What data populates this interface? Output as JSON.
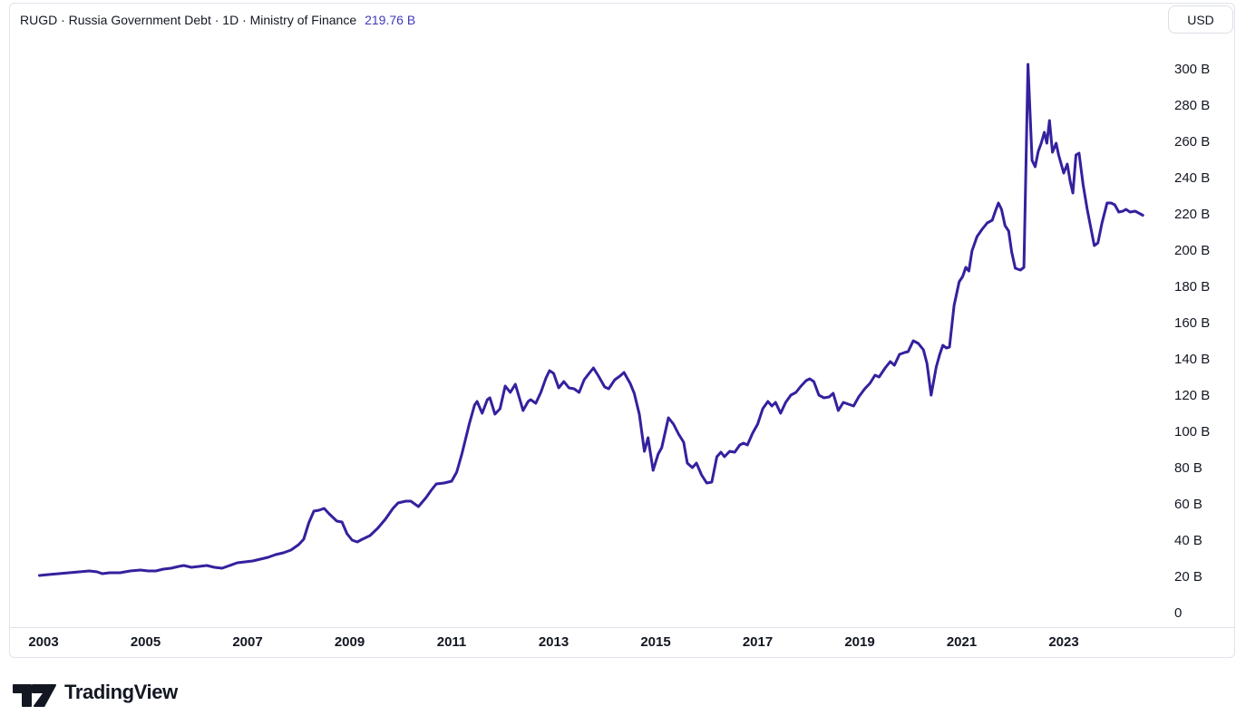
{
  "header": {
    "symbol_description": "RUGD · Russia Government Debt · 1D · Ministry of Finance",
    "last_value": "219.76 B",
    "currency_button": "USD"
  },
  "footer": {
    "brand": "TradingView"
  },
  "colors": {
    "line": "#33219E",
    "value_text": "#4239B9",
    "text": "#131722",
    "border": "#E0E3EB",
    "background": "#FFFFFF"
  },
  "chart_data": {
    "type": "line",
    "title": "RUGD · Russia Government Debt",
    "source": "Ministry of Finance",
    "unit": "USD billions",
    "last_value": 219.76,
    "grid": false,
    "legend_position": "none",
    "xlabel": "",
    "ylabel": "",
    "x_range": [
      2002.8,
      2024.9
    ],
    "ylim": [
      0,
      310
    ],
    "x_ticks": [
      2003,
      2005,
      2007,
      2009,
      2011,
      2013,
      2015,
      2017,
      2019,
      2021,
      2023
    ],
    "y_ticks": [
      {
        "label": "300 B",
        "value": 300
      },
      {
        "label": "280 B",
        "value": 280
      },
      {
        "label": "260 B",
        "value": 260
      },
      {
        "label": "240 B",
        "value": 240
      },
      {
        "label": "220 B",
        "value": 220
      },
      {
        "label": "200 B",
        "value": 200
      },
      {
        "label": "180 B",
        "value": 180
      },
      {
        "label": "160 B",
        "value": 160
      },
      {
        "label": "140 B",
        "value": 140
      },
      {
        "label": "120 B",
        "value": 120
      },
      {
        "label": "100 B",
        "value": 100
      },
      {
        "label": "80 B",
        "value": 80
      },
      {
        "label": "60 B",
        "value": 60
      },
      {
        "label": "40 B",
        "value": 40
      },
      {
        "label": "20 B",
        "value": 20
      },
      {
        "label": "0",
        "value": 0
      }
    ],
    "series": [
      {
        "name": "RUGD",
        "points": [
          [
            2002.92,
            21
          ],
          [
            2003.1,
            21.5
          ],
          [
            2003.3,
            22
          ],
          [
            2003.5,
            22.5
          ],
          [
            2003.7,
            23
          ],
          [
            2003.9,
            23.5
          ],
          [
            2004.05,
            23
          ],
          [
            2004.15,
            22
          ],
          [
            2004.3,
            22.5
          ],
          [
            2004.5,
            22.5
          ],
          [
            2004.7,
            23.5
          ],
          [
            2004.9,
            24
          ],
          [
            2005.05,
            23.5
          ],
          [
            2005.2,
            23.5
          ],
          [
            2005.35,
            24.5
          ],
          [
            2005.5,
            25
          ],
          [
            2005.65,
            26
          ],
          [
            2005.75,
            26.5
          ],
          [
            2005.9,
            25.5
          ],
          [
            2006.05,
            26
          ],
          [
            2006.2,
            26.5
          ],
          [
            2006.35,
            25.5
          ],
          [
            2006.5,
            25
          ],
          [
            2006.65,
            26.5
          ],
          [
            2006.8,
            28
          ],
          [
            2006.95,
            28.5
          ],
          [
            2007.1,
            29
          ],
          [
            2007.25,
            30
          ],
          [
            2007.4,
            31
          ],
          [
            2007.55,
            32.5
          ],
          [
            2007.7,
            33.5
          ],
          [
            2007.85,
            35
          ],
          [
            2008.0,
            38
          ],
          [
            2008.1,
            41
          ],
          [
            2008.2,
            50
          ],
          [
            2008.3,
            56.5
          ],
          [
            2008.4,
            57
          ],
          [
            2008.5,
            58
          ],
          [
            2008.6,
            55
          ],
          [
            2008.75,
            51
          ],
          [
            2008.85,
            50.5
          ],
          [
            2008.95,
            44
          ],
          [
            2009.05,
            40.5
          ],
          [
            2009.15,
            39.5
          ],
          [
            2009.25,
            41
          ],
          [
            2009.4,
            43
          ],
          [
            2009.55,
            47
          ],
          [
            2009.7,
            52
          ],
          [
            2009.85,
            58
          ],
          [
            2009.95,
            61
          ],
          [
            2010.1,
            62
          ],
          [
            2010.2,
            62
          ],
          [
            2010.35,
            59
          ],
          [
            2010.5,
            64
          ],
          [
            2010.6,
            68
          ],
          [
            2010.7,
            71.5
          ],
          [
            2010.85,
            72
          ],
          [
            2011.0,
            73
          ],
          [
            2011.1,
            78
          ],
          [
            2011.2,
            88
          ],
          [
            2011.35,
            105
          ],
          [
            2011.45,
            115
          ],
          [
            2011.5,
            117
          ],
          [
            2011.6,
            110.5
          ],
          [
            2011.7,
            118
          ],
          [
            2011.75,
            119
          ],
          [
            2011.85,
            110
          ],
          [
            2011.95,
            113
          ],
          [
            2012.05,
            125.5
          ],
          [
            2012.15,
            122
          ],
          [
            2012.25,
            126.5
          ],
          [
            2012.35,
            117
          ],
          [
            2012.4,
            112
          ],
          [
            2012.5,
            117
          ],
          [
            2012.55,
            118
          ],
          [
            2012.65,
            116
          ],
          [
            2012.75,
            122
          ],
          [
            2012.85,
            130
          ],
          [
            2012.92,
            134
          ],
          [
            2013.0,
            132.5
          ],
          [
            2013.1,
            124.5
          ],
          [
            2013.2,
            128
          ],
          [
            2013.3,
            124.5
          ],
          [
            2013.4,
            124
          ],
          [
            2013.5,
            122
          ],
          [
            2013.6,
            129
          ],
          [
            2013.68,
            132
          ],
          [
            2013.78,
            135.5
          ],
          [
            2013.88,
            131
          ],
          [
            2014.0,
            125
          ],
          [
            2014.08,
            124
          ],
          [
            2014.2,
            129
          ],
          [
            2014.3,
            131
          ],
          [
            2014.38,
            133
          ],
          [
            2014.5,
            127
          ],
          [
            2014.58,
            121.5
          ],
          [
            2014.68,
            110
          ],
          [
            2014.78,
            89.5
          ],
          [
            2014.85,
            97
          ],
          [
            2014.95,
            79
          ],
          [
            2015.05,
            88
          ],
          [
            2015.12,
            91.5
          ],
          [
            2015.25,
            108
          ],
          [
            2015.35,
            104.5
          ],
          [
            2015.45,
            99
          ],
          [
            2015.55,
            94.5
          ],
          [
            2015.62,
            83
          ],
          [
            2015.72,
            80.5
          ],
          [
            2015.8,
            83
          ],
          [
            2015.9,
            76.5
          ],
          [
            2016.0,
            72
          ],
          [
            2016.1,
            72.5
          ],
          [
            2016.2,
            86.5
          ],
          [
            2016.28,
            89
          ],
          [
            2016.35,
            86.5
          ],
          [
            2016.45,
            89.5
          ],
          [
            2016.55,
            89
          ],
          [
            2016.65,
            93
          ],
          [
            2016.72,
            94
          ],
          [
            2016.8,
            93
          ],
          [
            2016.9,
            99.5
          ],
          [
            2017.0,
            104.5
          ],
          [
            2017.1,
            113
          ],
          [
            2017.2,
            117
          ],
          [
            2017.28,
            114.5
          ],
          [
            2017.35,
            116.5
          ],
          [
            2017.45,
            110.5
          ],
          [
            2017.55,
            116.5
          ],
          [
            2017.65,
            120.5
          ],
          [
            2017.75,
            122
          ],
          [
            2017.85,
            125.5
          ],
          [
            2017.95,
            128.5
          ],
          [
            2018.02,
            129.5
          ],
          [
            2018.1,
            128
          ],
          [
            2018.2,
            120.5
          ],
          [
            2018.3,
            119
          ],
          [
            2018.4,
            119.5
          ],
          [
            2018.48,
            121.5
          ],
          [
            2018.58,
            112
          ],
          [
            2018.68,
            116.5
          ],
          [
            2018.78,
            115.5
          ],
          [
            2018.88,
            114.5
          ],
          [
            2018.98,
            119.5
          ],
          [
            2019.1,
            124
          ],
          [
            2019.2,
            127
          ],
          [
            2019.3,
            131.5
          ],
          [
            2019.38,
            130.5
          ],
          [
            2019.5,
            135.5
          ],
          [
            2019.6,
            139
          ],
          [
            2019.68,
            137
          ],
          [
            2019.78,
            143
          ],
          [
            2019.88,
            144
          ],
          [
            2019.95,
            144.5
          ],
          [
            2020.05,
            150.5
          ],
          [
            2020.15,
            149
          ],
          [
            2020.25,
            145.5
          ],
          [
            2020.32,
            138
          ],
          [
            2020.4,
            120.5
          ],
          [
            2020.5,
            136
          ],
          [
            2020.57,
            143
          ],
          [
            2020.63,
            148
          ],
          [
            2020.7,
            146.5
          ],
          [
            2020.76,
            147
          ],
          [
            2020.85,
            170
          ],
          [
            2020.95,
            183
          ],
          [
            2021.02,
            186
          ],
          [
            2021.08,
            191
          ],
          [
            2021.14,
            189
          ],
          [
            2021.2,
            200
          ],
          [
            2021.3,
            208
          ],
          [
            2021.4,
            212
          ],
          [
            2021.5,
            215.5
          ],
          [
            2021.6,
            217
          ],
          [
            2021.66,
            222
          ],
          [
            2021.72,
            226.5
          ],
          [
            2021.78,
            223
          ],
          [
            2021.85,
            214
          ],
          [
            2021.92,
            211
          ],
          [
            2021.98,
            199.5
          ],
          [
            2022.05,
            190.5
          ],
          [
            2022.15,
            189.5
          ],
          [
            2022.22,
            191
          ],
          [
            2022.3,
            303
          ],
          [
            2022.38,
            250
          ],
          [
            2022.44,
            246.5
          ],
          [
            2022.5,
            255
          ],
          [
            2022.56,
            259.5
          ],
          [
            2022.62,
            265.5
          ],
          [
            2022.67,
            259.5
          ],
          [
            2022.72,
            272
          ],
          [
            2022.78,
            254.5
          ],
          [
            2022.85,
            259.5
          ],
          [
            2022.9,
            253
          ],
          [
            2023.0,
            243
          ],
          [
            2023.07,
            248
          ],
          [
            2023.13,
            238
          ],
          [
            2023.18,
            232
          ],
          [
            2023.24,
            253
          ],
          [
            2023.3,
            254
          ],
          [
            2023.38,
            236.5
          ],
          [
            2023.46,
            223
          ],
          [
            2023.53,
            213
          ],
          [
            2023.6,
            203
          ],
          [
            2023.67,
            204.5
          ],
          [
            2023.75,
            215.5
          ],
          [
            2023.85,
            226.5
          ],
          [
            2023.93,
            226.5
          ],
          [
            2024.0,
            225.5
          ],
          [
            2024.08,
            221.5
          ],
          [
            2024.16,
            222
          ],
          [
            2024.22,
            223
          ],
          [
            2024.3,
            221.5
          ],
          [
            2024.4,
            222
          ],
          [
            2024.55,
            219.76
          ]
        ]
      }
    ]
  }
}
